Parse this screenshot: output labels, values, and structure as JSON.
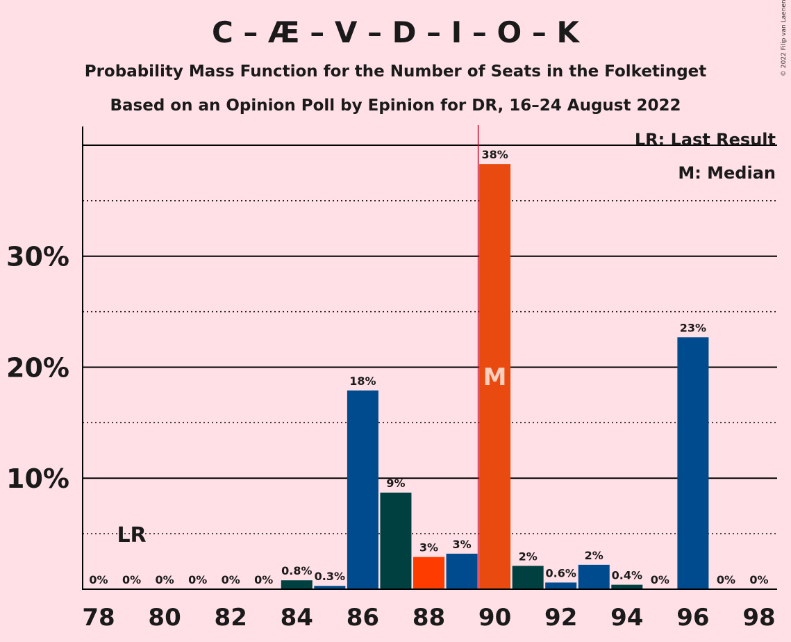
{
  "title": "C – Æ – V – D – I – O – K",
  "subtitle_1": "Probability Mass Function for the Number of Seats in the Folketinget",
  "subtitle_2": "Based on an Opinion Poll by Epinion for DR, 16–24 August 2022",
  "copyright": "© 2022 Filip van Laenen",
  "legend": {
    "last_result": "LR: Last Result",
    "median": "M: Median"
  },
  "colors": {
    "background": "#ffe0e6",
    "blue": "#004b8d",
    "dark_teal": "#004040",
    "orange_red": "#ff3c00",
    "bright_orange": "#e84a10",
    "median_line": "#c8102e"
  },
  "chart_data": {
    "type": "bar",
    "x": [
      78,
      79,
      80,
      81,
      82,
      83,
      84,
      85,
      86,
      87,
      88,
      89,
      90,
      91,
      92,
      93,
      94,
      95,
      96,
      97,
      98
    ],
    "values": [
      0,
      0,
      0,
      0,
      0,
      0,
      0.8,
      0.3,
      18,
      9,
      3,
      3,
      38,
      2,
      0.6,
      2,
      0.4,
      0,
      23,
      0,
      0
    ],
    "plot_values": [
      0,
      0,
      0,
      0,
      0,
      0,
      0.8,
      0.3,
      17.9,
      8.7,
      2.9,
      3.2,
      38.3,
      2.1,
      0.6,
      2.2,
      0.4,
      0,
      22.7,
      0,
      0
    ],
    "labels": [
      "0%",
      "0%",
      "0%",
      "0%",
      "0%",
      "0%",
      "0.8%",
      "0.3%",
      "18%",
      "9%",
      "3%",
      "3%",
      "38%",
      "2%",
      "0.6%",
      "2%",
      "0.4%",
      "0%",
      "23%",
      "0%",
      "0%"
    ],
    "bar_colors": [
      "blue",
      "blue",
      "blue",
      "blue",
      "blue",
      "blue",
      "dark_teal",
      "blue",
      "blue",
      "dark_teal",
      "orange_red",
      "blue",
      "bright_orange",
      "dark_teal",
      "blue",
      "blue",
      "dark_teal",
      "blue",
      "blue",
      "blue",
      "blue"
    ],
    "x_ticks": [
      78,
      80,
      82,
      84,
      86,
      88,
      90,
      92,
      94,
      96,
      98
    ],
    "x_tick_labels": [
      "78",
      "80",
      "82",
      "84",
      "86",
      "88",
      "90",
      "92",
      "94",
      "96",
      "98"
    ],
    "y_ticks": [
      10,
      20,
      30
    ],
    "y_tick_labels": [
      "10%",
      "20%",
      "30%"
    ],
    "ylim": [
      0,
      41.5
    ],
    "last_result": 79,
    "last_result_label": "LR",
    "median": 90,
    "median_label": "M",
    "grid": "solid at major ticks, dotted at half ticks"
  }
}
